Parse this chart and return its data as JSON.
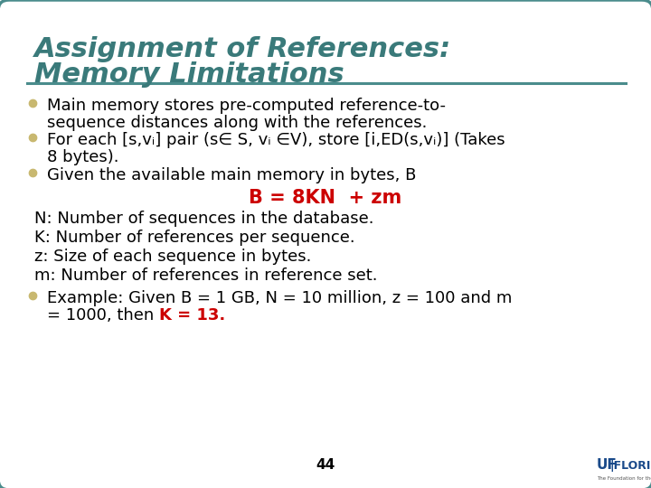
{
  "title_line1": "Assignment of References:",
  "title_line2": "Memory Limitations",
  "title_color": "#3A7A7A",
  "background_color": "#FFFFFF",
  "border_color": "#4A8C8C",
  "line_color": "#4A8C8C",
  "bullet_color": "#C8B870",
  "text_color": "#000000",
  "red_color": "#CC0000",
  "bullet1_line1": "Main memory stores pre-computed reference-to-",
  "bullet1_line2": "sequence distances along with the references.",
  "bullet2_line1": "For each [s,vᵢ] pair (s∈ S, vᵢ ∈V), store [i,ED(s,vᵢ)] (Takes",
  "bullet2_line2": "8 bytes).",
  "bullet3": "Given the available main memory in bytes, B",
  "formula": "B = 8KN  + zm",
  "line_n": "N: Number of sequences in the database.",
  "line_k": "K: Number of references per sequence.",
  "line_z": "z: Size of each sequence in bytes.",
  "line_m": "m: Number of references in reference set.",
  "bullet4_line1": "Example: Given B = 1 GB, N = 10 million, z = 100 and m",
  "bullet4_line2_black": "= 1000, then ",
  "bullet4_line2_red": "K = 13.",
  "page_number": "44",
  "font_size_title": 22,
  "font_size_body": 13,
  "font_size_formula": 15,
  "font_size_page": 11
}
